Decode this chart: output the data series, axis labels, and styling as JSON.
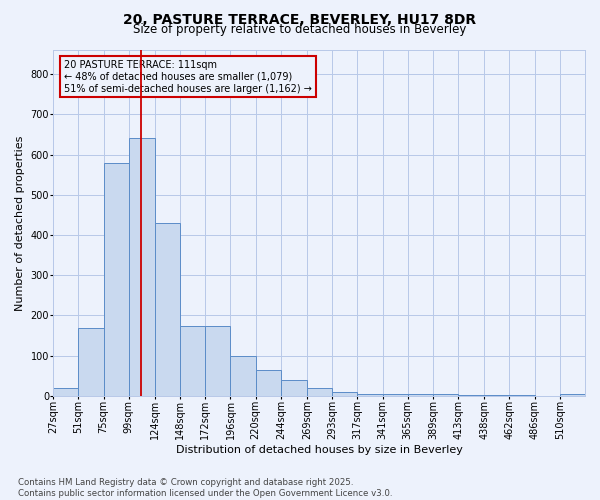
{
  "title1": "20, PASTURE TERRACE, BEVERLEY, HU17 8DR",
  "title2": "Size of property relative to detached houses in Beverley",
  "xlabel": "Distribution of detached houses by size in Beverley",
  "ylabel": "Number of detached properties",
  "footer1": "Contains HM Land Registry data © Crown copyright and database right 2025.",
  "footer2": "Contains public sector information licensed under the Open Government Licence v3.0.",
  "annotation_title": "20 PASTURE TERRACE: 111sqm",
  "annotation_line1": "← 48% of detached houses are smaller (1,079)",
  "annotation_line2": "51% of semi-detached houses are larger (1,162) →",
  "bin_labels": [
    "27sqm",
    "51sqm",
    "75sqm",
    "99sqm",
    "124sqm",
    "148sqm",
    "172sqm",
    "196sqm",
    "220sqm",
    "244sqm",
    "269sqm",
    "293sqm",
    "317sqm",
    "341sqm",
    "365sqm",
    "389sqm",
    "413sqm",
    "438sqm",
    "462sqm",
    "486sqm",
    "510sqm"
  ],
  "bin_left_edges": [
    27,
    51,
    75,
    99,
    124,
    148,
    172,
    196,
    220,
    244,
    269,
    293,
    317,
    341,
    365,
    389,
    413,
    438,
    462,
    486,
    510
  ],
  "bar_heights": [
    20,
    170,
    580,
    640,
    430,
    175,
    175,
    100,
    65,
    40,
    20,
    10,
    5,
    5,
    5,
    5,
    2,
    2,
    2,
    0,
    5
  ],
  "bar_color": "#c9d9ef",
  "bar_edge_color": "#5b8cc8",
  "vline_color": "#cc0000",
  "vline_x": 111,
  "annotation_box_color": "#cc0000",
  "background_color": "#edf2fc",
  "grid_color": "#b8c8e8",
  "ylim": [
    0,
    860
  ],
  "yticks": [
    0,
    100,
    200,
    300,
    400,
    500,
    600,
    700,
    800
  ],
  "title_fontsize": 10,
  "subtitle_fontsize": 8.5,
  "tick_fontsize": 7,
  "label_fontsize": 8,
  "footer_fontsize": 6.2
}
